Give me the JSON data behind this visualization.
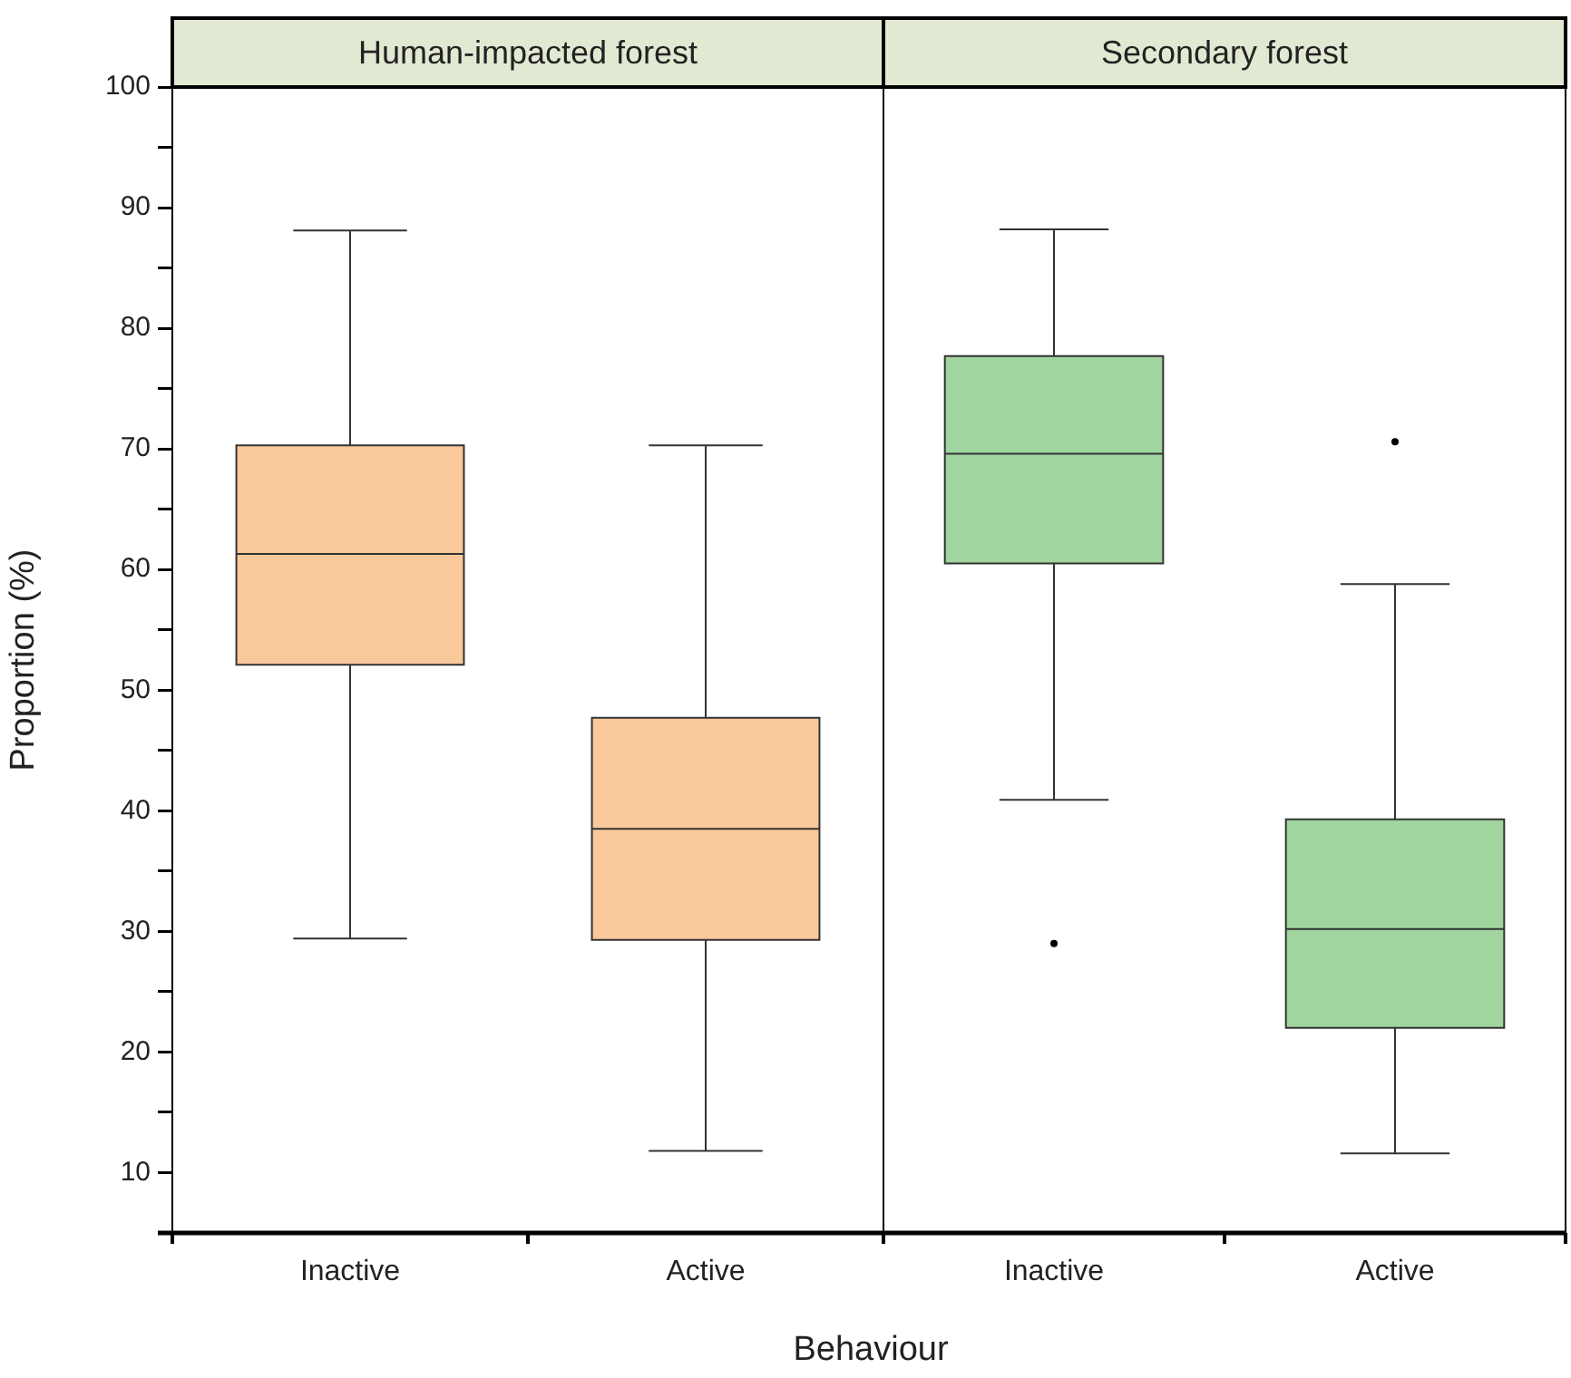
{
  "chart_data": [
    {
      "type": "box",
      "title": "Human-impacted forest",
      "xlabel": "Behaviour",
      "ylabel": "Proportion (%)",
      "categories": [
        "Inactive",
        "Active"
      ],
      "series": [
        {
          "color": "#f9c89b",
          "boxes": [
            {
              "low": 29.4,
              "q1": 52.1,
              "median": 61.3,
              "q3": 70.3,
              "high": 88.1
            },
            {
              "low": 11.8,
              "q1": 29.3,
              "median": 38.5,
              "q3": 47.7,
              "high": 70.3
            }
          ]
        }
      ],
      "ylim": [
        5,
        100
      ],
      "yticks": [
        {
          "value": 5,
          "label": null
        },
        10,
        {
          "value": 15,
          "label": null
        },
        20,
        {
          "value": 25,
          "label": null
        },
        30,
        {
          "value": 35,
          "label": null
        },
        40,
        {
          "value": 45,
          "label": null
        },
        50,
        {
          "value": 55,
          "label": null
        },
        60,
        {
          "value": 65,
          "label": null
        },
        70,
        {
          "value": 75,
          "label": null
        },
        80,
        {
          "value": 85,
          "label": null
        },
        90,
        {
          "value": 95,
          "label": null
        },
        100
      ],
      "grid": false,
      "legend": false
    },
    {
      "type": "box",
      "title": "Secondary forest",
      "categories": [
        "Inactive",
        "Active"
      ],
      "series": [
        {
          "color": "#a0d5a0",
          "boxes": [
            {
              "low": 40.9,
              "q1": 60.5,
              "median": 69.6,
              "q3": 77.7,
              "high": 88.2,
              "outliers": [
                29.0
              ]
            },
            {
              "low": 11.6,
              "q1": 22.0,
              "median": 30.2,
              "q3": 39.3,
              "high": 58.8,
              "outliers": [
                70.6
              ]
            }
          ]
        }
      ],
      "ylim": [
        5,
        100
      ],
      "grid": false,
      "legend": false,
      "tick_labels": "x"
    }
  ]
}
